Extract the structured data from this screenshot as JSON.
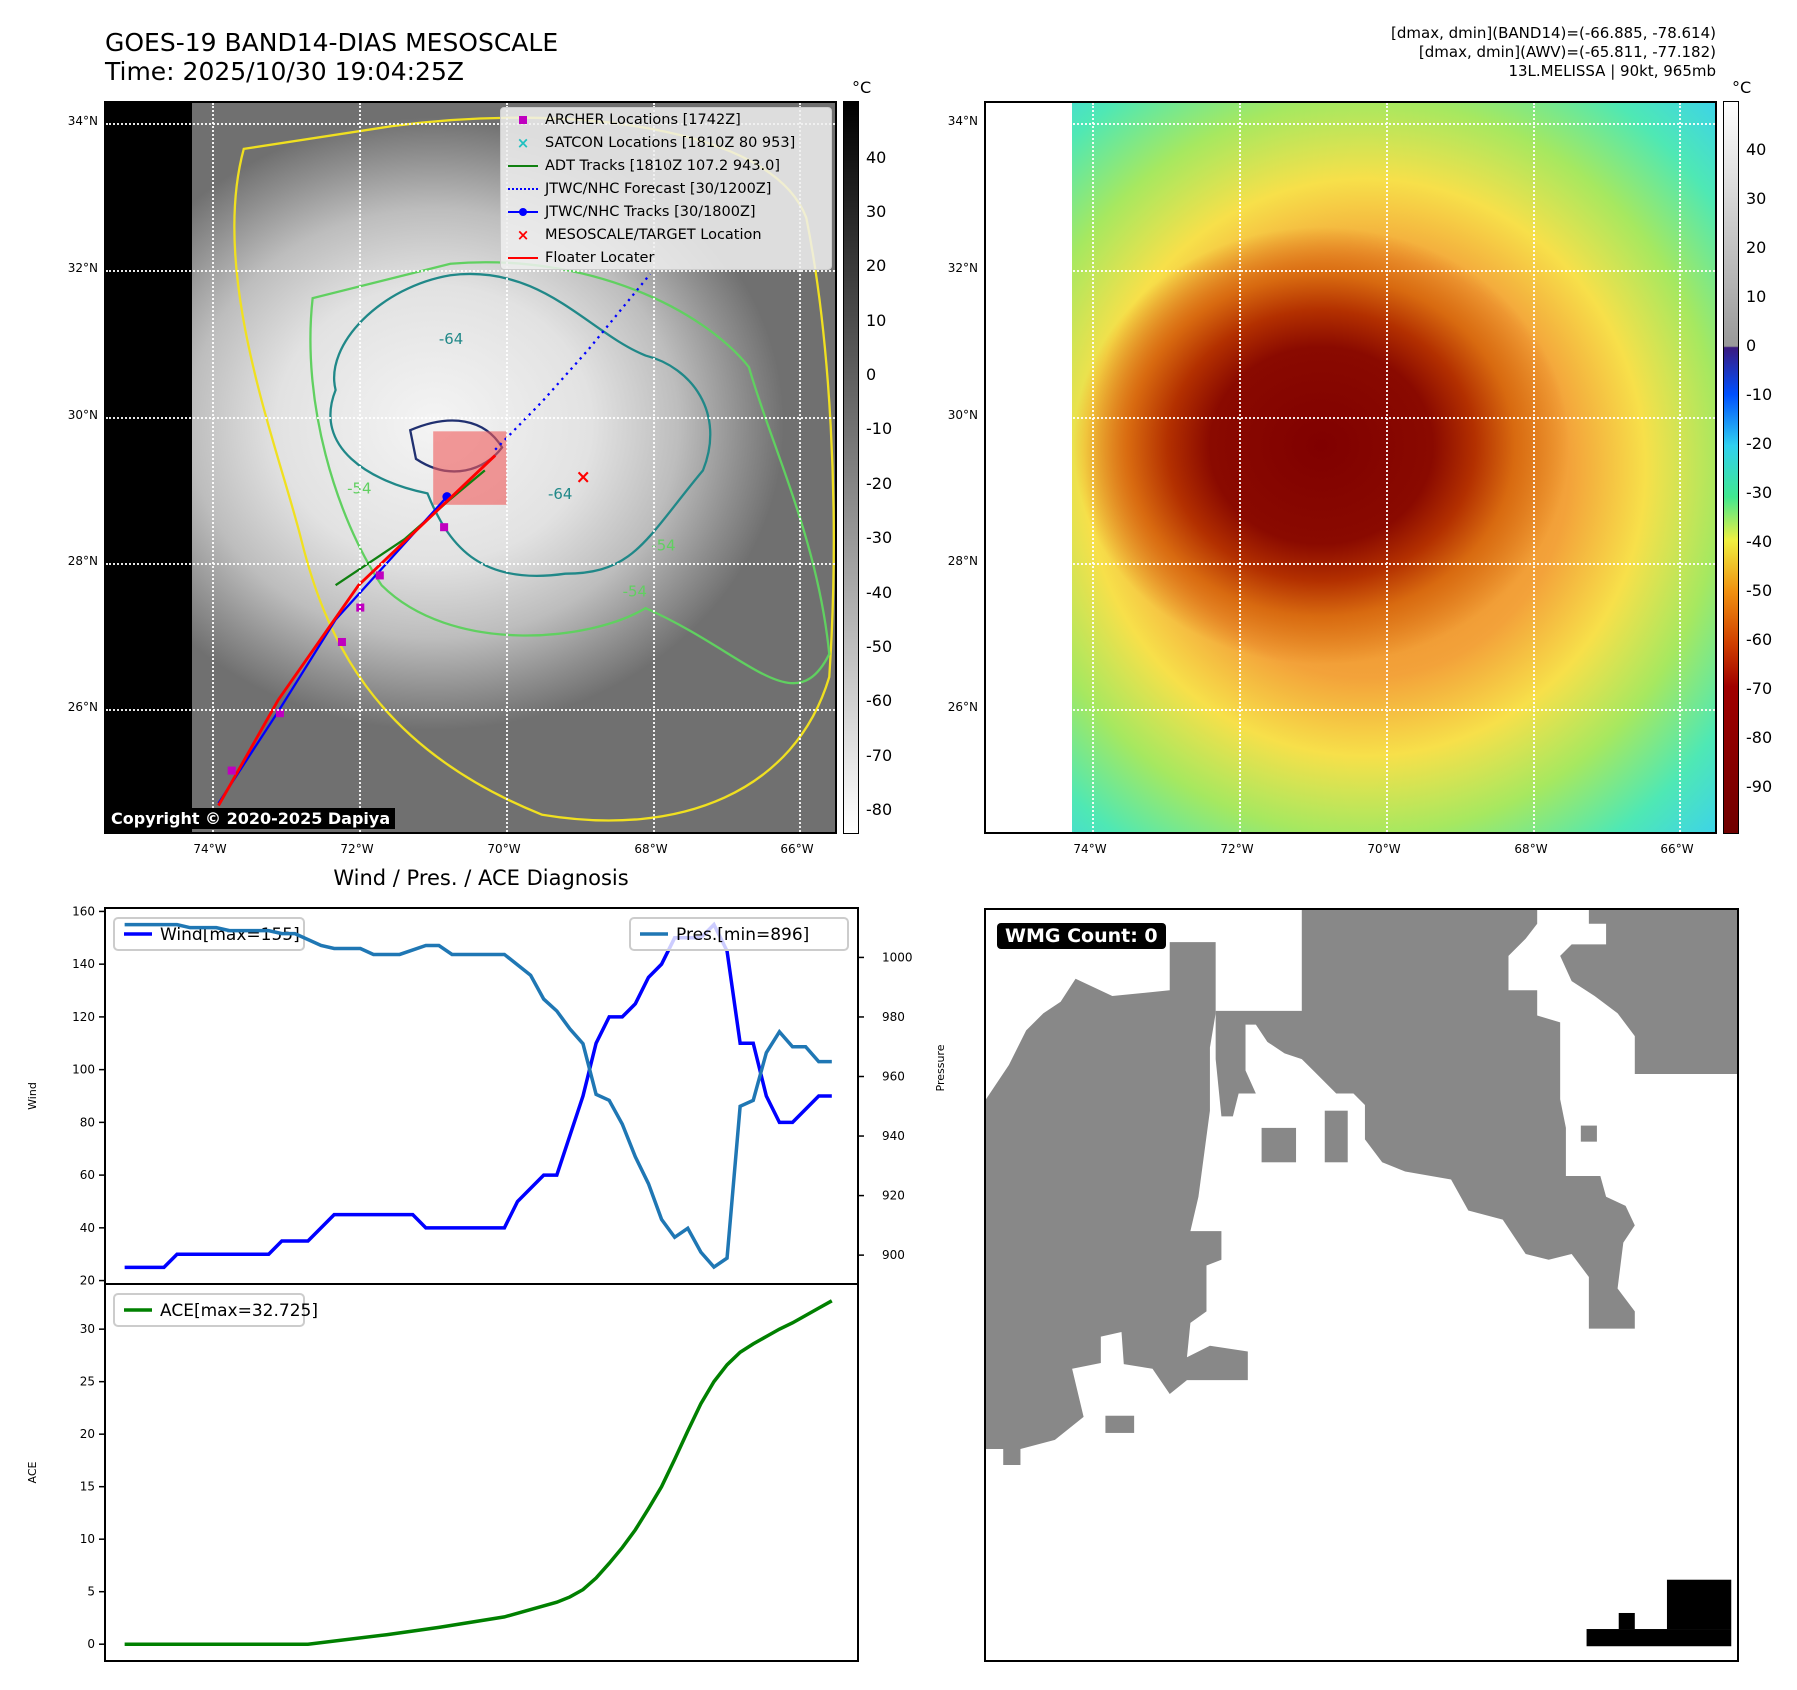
{
  "header": {
    "title_line1": "GOES-19 BAND14-DIAS MESOSCALE",
    "title_line2": "Time: 2025/10/30 19:04:25Z",
    "info_line1": "[dmax, dmin](BAND14)=(-66.885, -78.614)",
    "info_line2": "[dmax, dmin](AWV)=(-65.811, -77.182)",
    "info_line3": "13L.MELISSA | 90kt, 965mb"
  },
  "map": {
    "lat_labels": [
      "34°N",
      "32°N",
      "30°N",
      "28°N",
      "26°N"
    ],
    "lon_labels": [
      "74°W",
      "72°W",
      "70°W",
      "68°W",
      "66°W"
    ],
    "copyright": "Copyright © 2020-2025 Dapiya",
    "contour_labels": [
      "-64",
      "-64",
      "-54",
      "-54",
      "-54"
    ],
    "legend": [
      {
        "label": "ARCHER Locations [1742Z]",
        "color": "#c000c0",
        "symbol": "square"
      },
      {
        "label": "SATCON Locations [1810Z 80 953]",
        "color": "#20c0c0",
        "symbol": "x"
      },
      {
        "label": "ADT Tracks [1810Z 107.2 943.0]",
        "color": "#108010",
        "symbol": "line"
      },
      {
        "label": "JTWC/NHC Forecast [30/1200Z]",
        "color": "#0000ff",
        "symbol": "dotted"
      },
      {
        "label": "JTWC/NHC Tracks [30/1800Z]",
        "color": "#0000ff",
        "symbol": "line-dot"
      },
      {
        "label": "MESOSCALE/TARGET Location",
        "color": "#ff0000",
        "symbol": "x"
      },
      {
        "label": "Floater Locater",
        "color": "#ff0000",
        "symbol": "line"
      }
    ]
  },
  "colorbar_left": {
    "unit": "°C",
    "range": [
      -84.4,
      50.4
    ],
    "ticks": [
      40,
      30,
      20,
      10,
      0,
      -10,
      -20,
      -30,
      -40,
      -50,
      -60,
      -70,
      -80
    ]
  },
  "colorbar_right": {
    "unit": "°C",
    "range": [
      -99.7,
      50.1
    ],
    "ticks": [
      40,
      30,
      20,
      10,
      0,
      -10,
      -20,
      -30,
      -40,
      -50,
      -60,
      -70,
      -80,
      -90
    ]
  },
  "wmg": {
    "label": "WMG Count: 0"
  },
  "chart_data": [
    {
      "type": "line",
      "title": "Wind / Pres. / ACE Diagnosis",
      "ylabel": "Wind",
      "ylabel_right": "Pressure",
      "ylim": [
        18.7,
        161.3
      ],
      "ylim_right": [
        890.3,
        1016.6
      ],
      "xlim": [
        -1.5,
        56
      ],
      "yticks": [
        20,
        40,
        60,
        80,
        100,
        120,
        140,
        160
      ],
      "yticks_right": [
        900,
        920,
        940,
        960,
        980,
        1000
      ],
      "series": [
        {
          "name": "Wind[max=155]",
          "axis": "left",
          "color": "#0000ff",
          "points": [
            [
              0,
              25
            ],
            [
              3,
              25
            ],
            [
              4,
              30
            ],
            [
              11,
              30
            ],
            [
              12,
              35
            ],
            [
              14,
              35
            ],
            [
              16,
              45
            ],
            [
              22,
              45
            ],
            [
              23,
              40
            ],
            [
              29,
              40
            ],
            [
              30,
              50
            ],
            [
              32,
              60
            ],
            [
              33,
              60
            ],
            [
              35,
              90
            ],
            [
              36,
              110
            ],
            [
              37,
              120
            ],
            [
              38,
              120
            ],
            [
              39,
              125
            ],
            [
              40,
              135
            ],
            [
              41,
              140
            ],
            [
              42,
              150
            ],
            [
              44,
              150
            ],
            [
              45,
              155
            ],
            [
              46,
              145
            ],
            [
              47,
              110
            ],
            [
              48,
              110
            ],
            [
              49,
              90
            ],
            [
              50,
              80
            ],
            [
              51,
              80
            ],
            [
              53,
              90
            ],
            [
              54,
              90
            ]
          ]
        },
        {
          "name": "Pres.[min=896]",
          "axis": "right",
          "color": "#1f77b4",
          "points": [
            [
              0,
              1011
            ],
            [
              4,
              1011
            ],
            [
              5,
              1010
            ],
            [
              7,
              1010
            ],
            [
              8,
              1009
            ],
            [
              11,
              1009
            ],
            [
              12,
              1008
            ],
            [
              13,
              1008
            ],
            [
              15,
              1004
            ],
            [
              16,
              1003
            ],
            [
              18,
              1003
            ],
            [
              19,
              1001
            ],
            [
              21,
              1001
            ],
            [
              23,
              1004
            ],
            [
              24,
              1004
            ],
            [
              25,
              1001
            ],
            [
              29,
              1001
            ],
            [
              31,
              994
            ],
            [
              32,
              986
            ],
            [
              33,
              982
            ],
            [
              34,
              976
            ],
            [
              35,
              971
            ],
            [
              36,
              954
            ],
            [
              37,
              952
            ],
            [
              38,
              944
            ],
            [
              39,
              933
            ],
            [
              40,
              924
            ],
            [
              41,
              912
            ],
            [
              42,
              906
            ],
            [
              43,
              909
            ],
            [
              44,
              901
            ],
            [
              45,
              896
            ],
            [
              46,
              899
            ],
            [
              47,
              950
            ],
            [
              48,
              952
            ],
            [
              49,
              968
            ],
            [
              50,
              975
            ],
            [
              51,
              970
            ],
            [
              52,
              970
            ],
            [
              53,
              965
            ],
            [
              54,
              965
            ]
          ]
        }
      ]
    },
    {
      "type": "line",
      "ylabel": "ACE",
      "ylim": [
        -1.6,
        34.3
      ],
      "xlim": [
        -1.5,
        56
      ],
      "yticks": [
        0,
        5,
        10,
        15,
        20,
        25,
        30
      ],
      "series": [
        {
          "name": "ACE[max=32.725]",
          "color": "#008000",
          "points": [
            [
              0,
              0
            ],
            [
              14,
              0
            ],
            [
              20,
              0.9
            ],
            [
              24,
              1.6
            ],
            [
              29,
              2.6
            ],
            [
              31,
              3.3
            ],
            [
              33,
              4
            ],
            [
              34,
              4.5
            ],
            [
              35,
              5.2
            ],
            [
              36,
              6.3
            ],
            [
              37,
              7.7
            ],
            [
              38,
              9.2
            ],
            [
              39,
              10.9
            ],
            [
              40,
              12.9
            ],
            [
              41,
              15
            ],
            [
              42,
              17.6
            ],
            [
              43,
              20.3
            ],
            [
              44,
              22.9
            ],
            [
              45,
              25
            ],
            [
              46,
              26.6
            ],
            [
              47,
              27.8
            ],
            [
              48,
              28.6
            ],
            [
              49,
              29.3
            ],
            [
              50,
              30
            ],
            [
              51,
              30.6
            ],
            [
              52,
              31.3
            ],
            [
              53,
              32
            ],
            [
              54,
              32.7
            ]
          ]
        }
      ]
    }
  ]
}
